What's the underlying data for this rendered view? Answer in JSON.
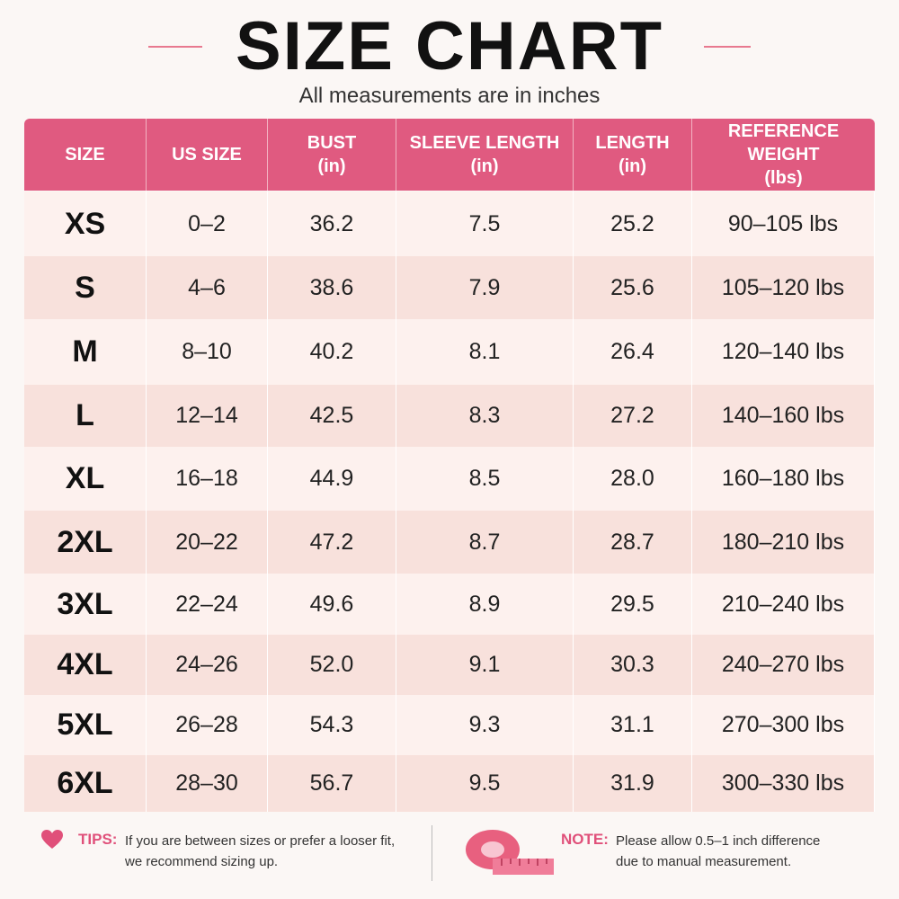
{
  "header": {
    "title": "SIZE CHART",
    "subtitle": "All measurements are in inches"
  },
  "table": {
    "columns": [
      {
        "name": "SIZE"
      },
      {
        "name": "US SIZE"
      },
      {
        "name": "BUST",
        "unit": "(in)"
      },
      {
        "name": "SLEEVE LENGTH",
        "unit": "(in)"
      },
      {
        "name": "LENGTH",
        "unit": "(in)"
      },
      {
        "name": "REFERENCE WEIGHT",
        "unit": "(lbs)"
      }
    ],
    "rows": [
      [
        "XS",
        "0–2",
        "36.2",
        "7.5",
        "25.2",
        "90–105 lbs"
      ],
      [
        "S",
        "4–6",
        "38.6",
        "7.9",
        "25.6",
        "105–120 lbs"
      ],
      [
        "M",
        "8–10",
        "40.2",
        "8.1",
        "26.4",
        "120–140 lbs"
      ],
      [
        "L",
        "12–14",
        "42.5",
        "8.3",
        "27.2",
        "140–160 lbs"
      ],
      [
        "XL",
        "16–18",
        "44.9",
        "8.5",
        "28.0",
        "160–180 lbs"
      ],
      [
        "2XL",
        "20–22",
        "47.2",
        "8.7",
        "28.7",
        "180–210 lbs"
      ],
      [
        "3XL",
        "22–24",
        "49.6",
        "8.9",
        "29.5",
        "210–240 lbs"
      ],
      [
        "4XL",
        "24–26",
        "52.0",
        "9.1",
        "30.3",
        "240–270 lbs"
      ],
      [
        "5XL",
        "26–28",
        "54.3",
        "9.3",
        "31.1",
        "270–300 lbs"
      ],
      [
        "6XL",
        "28–30",
        "56.7",
        "9.5",
        "31.9",
        "300–330 lbs"
      ]
    ]
  },
  "tips": {
    "label": "TIPS:",
    "lines": [
      "If you are between sizes or prefer a looser fit,",
      "we recommend sizing up."
    ]
  },
  "note": {
    "label": "NOTE:",
    "lines": [
      "Please allow 0.5–1 inch difference",
      "due to manual measurement."
    ]
  }
}
